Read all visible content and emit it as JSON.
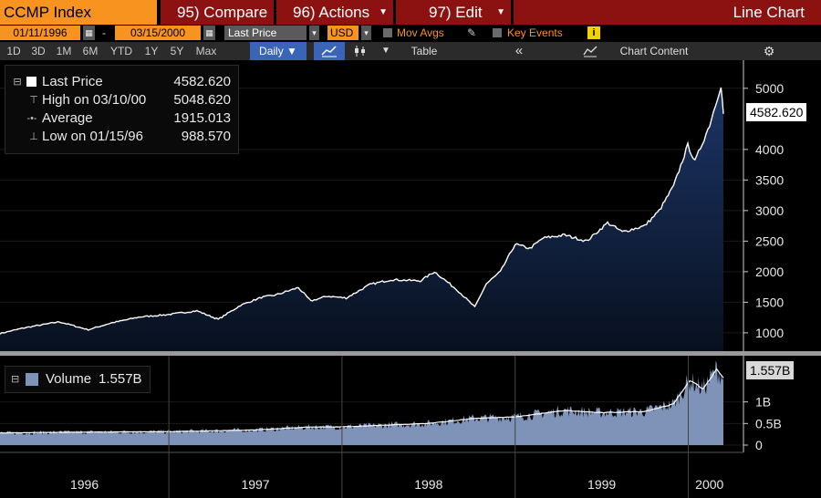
{
  "toolbar": {
    "ticker": "CCMP Index",
    "compare_label": "95) Compare",
    "actions_label": "96) Actions",
    "edit_label": "97) Edit",
    "chart_type_label": "Line Chart"
  },
  "controls": {
    "start_date": "01/11/1996",
    "end_date": "03/15/2000",
    "dash": "-",
    "field": "Last Price",
    "currency": "USD",
    "mov_avgs": "Mov Avgs",
    "key_events": "Key Events",
    "info": "i"
  },
  "periods": [
    "1D",
    "3D",
    "1M",
    "6M",
    "YTD",
    "1Y",
    "5Y",
    "Max"
  ],
  "frequency": "Daily ▼",
  "table_label": "Table",
  "collapse_label": "«",
  "chart_content_label": "Chart Content",
  "legend": {
    "last_label": "Last Price",
    "last_value": "4582.620",
    "high_label": "High on 03/10/00",
    "high_value": "5048.620",
    "avg_label": "Average",
    "avg_value": "1915.013",
    "low_label": "Low on 01/15/96",
    "low_value": "988.570"
  },
  "volume_legend": {
    "label": "Volume",
    "value": "1.557B"
  },
  "price_tag": "4582.620",
  "volume_tag": "1.557B",
  "colors": {
    "orange": "#f7931e",
    "menu_red": "#8c1111",
    "active_blue": "#3a64b8",
    "price_fill_top": "#1c3566",
    "volume_fill": "#7f93b8"
  },
  "chart_data": [
    {
      "type": "area",
      "series": [
        {
          "name": "Last Price",
          "x": [
            "1996-01-11",
            "1996-03-01",
            "1996-05-15",
            "1996-07-15",
            "1996-09-01",
            "1996-11-01",
            "1997-01-01",
            "1997-03-01",
            "1997-04-15",
            "1997-06-01",
            "1997-07-15",
            "1997-08-15",
            "1997-10-01",
            "1997-10-27",
            "1997-12-01",
            "1998-01-10",
            "1998-03-01",
            "1998-04-15",
            "1998-06-15",
            "1998-07-15",
            "1998-09-01",
            "1998-10-08",
            "1998-11-01",
            "1998-12-01",
            "1999-01-01",
            "1999-02-01",
            "1999-03-01",
            "1999-04-15",
            "1999-06-01",
            "1999-07-15",
            "1999-08-15",
            "1999-10-01",
            "1999-11-01",
            "1999-12-01",
            "1999-12-31",
            "2000-01-15",
            "2000-02-15",
            "2000-03-10",
            "2000-03-15"
          ],
          "y": [
            988.57,
            1080,
            1180,
            1050,
            1160,
            1260,
            1300,
            1360,
            1220,
            1450,
            1580,
            1620,
            1740,
            1520,
            1600,
            1570,
            1790,
            1870,
            1850,
            2000,
            1700,
            1420,
            1800,
            2000,
            2450,
            2380,
            2550,
            2600,
            2500,
            2800,
            2650,
            2750,
            3000,
            3400,
            4069,
            3800,
            4400,
            5048.62,
            4582.62
          ]
        }
      ],
      "yticks": [
        "1000",
        "1500",
        "2000",
        "2500",
        "3000",
        "3500",
        "4000",
        "5000"
      ],
      "ylim": [
        700,
        5400
      ],
      "last_value": "4582.620"
    },
    {
      "type": "area",
      "series": [
        {
          "name": "Volume",
          "x": [
            "1996-01-11",
            "1996-07-01",
            "1997-01-01",
            "1997-07-01",
            "1997-10-27",
            "1998-01-01",
            "1998-07-01",
            "1998-10-08",
            "1999-01-01",
            "1999-04-15",
            "1999-07-01",
            "1999-10-01",
            "1999-12-01",
            "2000-01-04",
            "2000-02-01",
            "2000-03-01",
            "2000-03-15"
          ],
          "y": [
            0.28,
            0.3,
            0.31,
            0.35,
            0.42,
            0.42,
            0.5,
            0.62,
            0.65,
            0.8,
            0.75,
            0.78,
            0.95,
            1.5,
            1.3,
            1.75,
            1.557
          ]
        }
      ],
      "yticks": [
        "0",
        "0.5B",
        "1B"
      ],
      "ylim": [
        0,
        1.9
      ],
      "last_value": "1.557B"
    }
  ],
  "xticks": [
    "1996",
    "1997",
    "1998",
    "1999",
    "2000"
  ]
}
